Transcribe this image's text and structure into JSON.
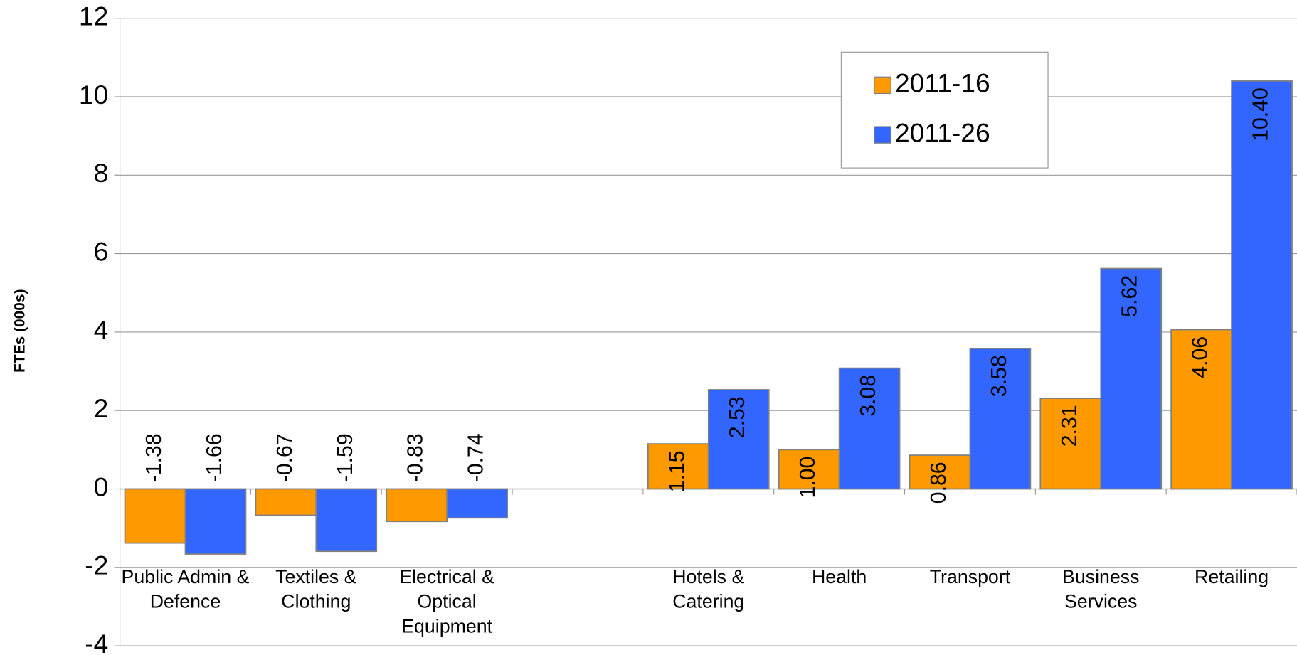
{
  "chart_data": {
    "type": "bar",
    "y_label": "FTEs (000s)",
    "categories": [
      "Public Admin & Defence",
      "Textiles & Clothing",
      "Electrical & Optical Equipment",
      null,
      "Hotels & Catering",
      "Health",
      "Transport",
      "Business Services",
      "Retailing"
    ],
    "series": [
      {
        "name": "2011-16",
        "color": "#ff9900",
        "values": [
          -1.38,
          -0.67,
          -0.83,
          null,
          1.15,
          1.0,
          0.86,
          2.31,
          4.06
        ],
        "value_labels": [
          "-1.38",
          "-0.67",
          "-0.83",
          null,
          "1.15",
          "1.00",
          "0.86",
          "2.31",
          "4.06"
        ]
      },
      {
        "name": "2011-26",
        "color": "#3366ff",
        "values": [
          -1.66,
          -1.59,
          -0.74,
          null,
          2.53,
          3.08,
          3.58,
          5.62,
          10.4
        ],
        "value_labels": [
          "-1.66",
          "-1.59",
          "-0.74",
          null,
          "2.53",
          "3.08",
          "3.58",
          "5.62",
          "10.40"
        ]
      }
    ],
    "ylim": [
      -4,
      12
    ],
    "yticks": [
      -4,
      -2,
      0,
      2,
      4,
      6,
      8,
      10,
      12
    ],
    "grid": true,
    "legend_position": "upper right"
  }
}
